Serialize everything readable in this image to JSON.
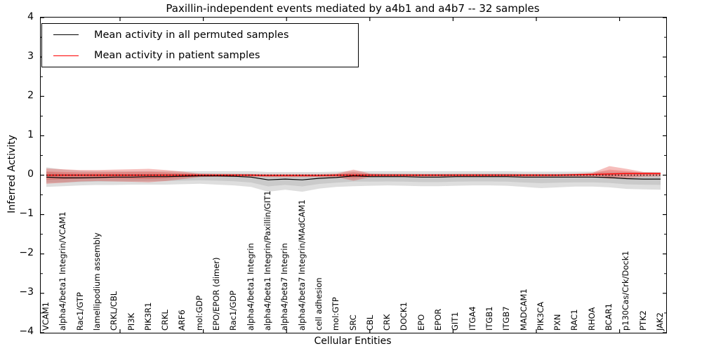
{
  "figure": {
    "background": "#ffffff"
  },
  "chart": {
    "title": "Paxillin-independent events mediated by a4b1 and a4b7 -- 32 samples",
    "xlabel": "Cellular Entities",
    "ylabel": "Inferred Activity",
    "yticks": [
      "4",
      "3",
      "2",
      "1",
      "0",
      "−1",
      "−2",
      "−3",
      "−4"
    ],
    "legend": {
      "entries": [
        {
          "label": "Mean activity in all permuted samples",
          "color": "#000000"
        },
        {
          "label": "Mean activity in patient samples",
          "color": "#ff0000"
        }
      ]
    }
  },
  "chart_data": {
    "type": "line",
    "title": "Paxillin-independent events mediated by a4b1 and a4b7 -- 32 samples",
    "xlabel": "Cellular Entities",
    "ylabel": "Inferred Activity",
    "ylim": [
      -4,
      4
    ],
    "grid": false,
    "legend_position": "upper left",
    "categories": [
      "VCAM1",
      "alpha4/beta1 Integrin/VCAM1",
      "Rac1/GTP",
      "lamellipodium assembly",
      "CRKL/CBL",
      "PI3K",
      "PIK3R1",
      "CRKL",
      "ARF6",
      "mol:GDP",
      "EPO/EPOR (dimer)",
      "Rac1/GDP",
      "alpha4/beta1 Integrin",
      "alpha4/beta1 Integrin/Paxillin/GIT1",
      "alpha4/beta7 Integrin",
      "alpha4/beta7 Integrin/MAdCAM1",
      "cell adhesion",
      "mol:GTP",
      "SRC",
      "CBL",
      "CRK",
      "DOCK1",
      "EPO",
      "EPOR",
      "GIT1",
      "ITGA4",
      "ITGB1",
      "ITGB7",
      "MADCAM1",
      "PIK3CA",
      "PXN",
      "RAC1",
      "RHOA",
      "BCAR1",
      "p130Cas/Crk/Dock1",
      "PTK2",
      "JAK2"
    ],
    "series": [
      {
        "name": "Mean activity in all permuted samples",
        "role": "mean",
        "group": "permuted",
        "color": "#000000",
        "style": "solid",
        "values": [
          -0.05,
          -0.07,
          -0.07,
          -0.06,
          -0.05,
          -0.05,
          -0.04,
          -0.04,
          -0.03,
          -0.02,
          -0.02,
          -0.03,
          -0.05,
          -0.12,
          -0.1,
          -0.12,
          -0.08,
          -0.06,
          -0.02,
          -0.04,
          -0.04,
          -0.04,
          -0.05,
          -0.05,
          -0.04,
          -0.04,
          -0.04,
          -0.04,
          -0.05,
          -0.05,
          -0.05,
          -0.05,
          -0.05,
          -0.06,
          -0.09,
          -0.1,
          -0.1
        ]
      },
      {
        "name": "Permuted samples activity band",
        "role": "band",
        "group": "permuted",
        "color": "#999999",
        "upper": [
          0.2,
          0.14,
          0.11,
          0.1,
          0.1,
          0.1,
          0.1,
          0.1,
          0.1,
          0.1,
          0.1,
          0.1,
          0.1,
          0.08,
          0.08,
          0.08,
          0.08,
          0.09,
          0.1,
          0.1,
          0.1,
          0.1,
          0.1,
          0.1,
          0.1,
          0.1,
          0.1,
          0.1,
          0.09,
          0.09,
          0.09,
          0.09,
          0.09,
          0.09,
          0.08,
          0.08,
          0.08
        ],
        "lower": [
          -0.3,
          -0.28,
          -0.26,
          -0.25,
          -0.25,
          -0.24,
          -0.24,
          -0.24,
          -0.23,
          -0.22,
          -0.24,
          -0.26,
          -0.3,
          -0.42,
          -0.37,
          -0.42,
          -0.34,
          -0.3,
          -0.28,
          -0.27,
          -0.26,
          -0.27,
          -0.28,
          -0.28,
          -0.27,
          -0.26,
          -0.26,
          -0.27,
          -0.3,
          -0.33,
          -0.31,
          -0.29,
          -0.29,
          -0.31,
          -0.35,
          -0.36,
          -0.37
        ]
      },
      {
        "name": "Mean activity in patient samples",
        "role": "mean",
        "group": "patient",
        "color": "#ff0000",
        "style": "solid",
        "values": [
          0,
          0,
          0,
          0,
          0,
          0,
          0,
          0,
          0,
          0,
          0,
          0,
          0,
          -0.01,
          -0.01,
          -0.01,
          -0.01,
          0,
          0,
          0,
          0,
          0,
          0,
          0,
          0,
          0,
          0,
          0,
          0,
          0,
          0,
          0.01,
          0.02,
          0.03,
          0.04,
          0.04,
          0.04
        ]
      },
      {
        "name": "Patient samples activity band",
        "role": "band",
        "group": "patient",
        "color": "#e53935",
        "upper": [
          0.17,
          0.15,
          0.13,
          0.13,
          0.14,
          0.15,
          0.16,
          0.13,
          0.09,
          0.04,
          0.03,
          0.03,
          0.03,
          0.03,
          0.03,
          0.03,
          0.03,
          0.04,
          0.14,
          0.04,
          0.03,
          0.03,
          0.03,
          0.03,
          0.03,
          0.03,
          0.03,
          0.03,
          0.03,
          0.03,
          0.03,
          0.04,
          0.06,
          0.23,
          0.16,
          0.08,
          0.07
        ],
        "lower": [
          -0.22,
          -0.19,
          -0.16,
          -0.15,
          -0.16,
          -0.17,
          -0.18,
          -0.15,
          -0.1,
          -0.05,
          -0.04,
          -0.04,
          -0.04,
          -0.05,
          -0.05,
          -0.05,
          -0.05,
          -0.05,
          -0.14,
          -0.05,
          -0.04,
          -0.04,
          -0.04,
          -0.04,
          -0.04,
          -0.04,
          -0.04,
          -0.04,
          -0.04,
          -0.04,
          -0.04,
          -0.04,
          -0.04,
          -0.09,
          -0.08,
          -0.04,
          -0.03
        ]
      },
      {
        "name": "Zero reference line",
        "role": "reference",
        "group": "zero",
        "color": "#000000",
        "style": "dotted",
        "value": 0
      }
    ]
  }
}
